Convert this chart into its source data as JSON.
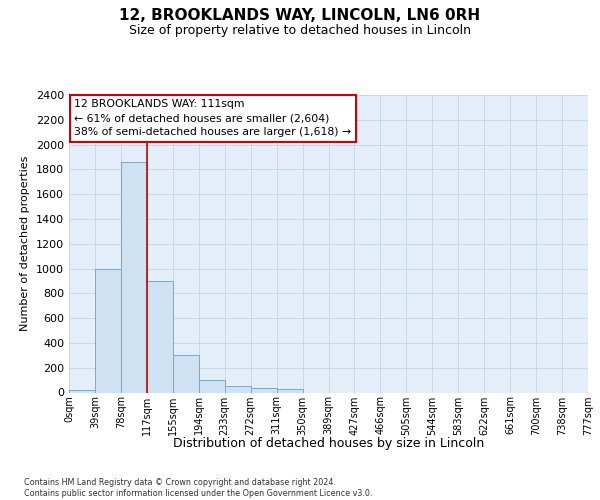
{
  "title": "12, BROOKLANDS WAY, LINCOLN, LN6 0RH",
  "subtitle": "Size of property relative to detached houses in Lincoln",
  "xlabel": "Distribution of detached houses by size in Lincoln",
  "ylabel": "Number of detached properties",
  "categories": [
    "0sqm",
    "39sqm",
    "78sqm",
    "117sqm",
    "155sqm",
    "194sqm",
    "233sqm",
    "272sqm",
    "311sqm",
    "350sqm",
    "389sqm",
    "427sqm",
    "466sqm",
    "505sqm",
    "544sqm",
    "583sqm",
    "622sqm",
    "661sqm",
    "700sqm",
    "738sqm",
    "777sqm"
  ],
  "values": [
    20,
    1000,
    1860,
    900,
    300,
    100,
    50,
    40,
    30,
    0,
    0,
    0,
    0,
    0,
    0,
    0,
    0,
    0,
    0,
    0
  ],
  "bar_color": "#cfe2f3",
  "bar_edge_color": "#6aaed6",
  "bar_edge_width": 0.7,
  "vline_x": 3,
  "vline_color": "#cc0000",
  "ylim_max": 2400,
  "yticks": [
    0,
    200,
    400,
    600,
    800,
    1000,
    1200,
    1400,
    1600,
    1800,
    2000,
    2200,
    2400
  ],
  "annotation_line1": "12 BROOKLANDS WAY: 111sqm",
  "annotation_line2": "← 61% of detached houses are smaller (2,604)",
  "annotation_line3": "38% of semi-detached houses are larger (1,618) →",
  "annotation_box_facecolor": "#ffffff",
  "annotation_box_edgecolor": "#cc0000",
  "footer": "Contains HM Land Registry data © Crown copyright and database right 2024.\nContains public sector information licensed under the Open Government Licence v3.0.",
  "grid_color": "#c8d8ea",
  "bg_color": "#e4eef8",
  "title_fontsize": 11,
  "subtitle_fontsize": 9,
  "ylabel_fontsize": 8,
  "xlabel_fontsize": 9,
  "ytick_fontsize": 8,
  "xtick_fontsize": 7
}
